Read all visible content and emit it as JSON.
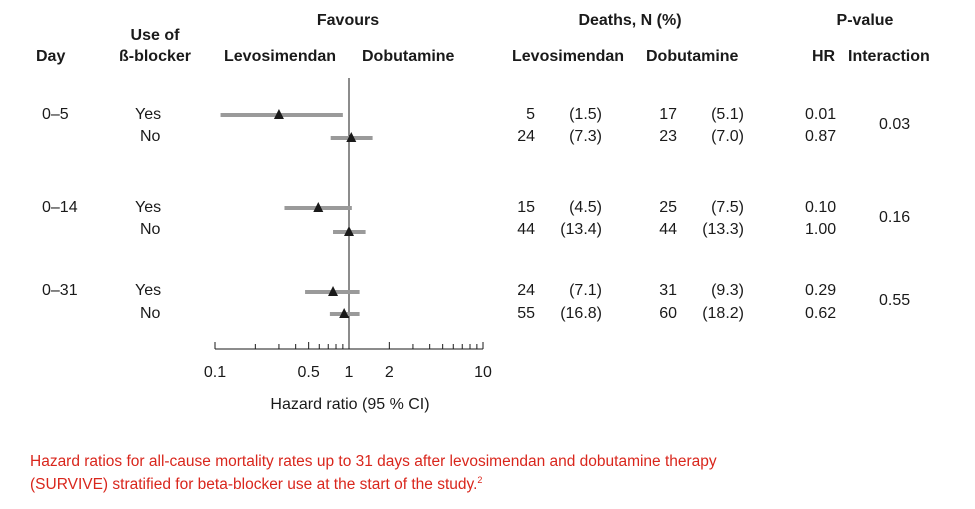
{
  "headers": {
    "day": "Day",
    "beta_blocker": [
      "Use of",
      "ß-blocker"
    ],
    "favours": "Favours",
    "favours_levo": "Levosimendan",
    "favours_dobu": "Dobutamine",
    "deaths": "Deaths, N (%)",
    "deaths_levo": "Levosimendan",
    "deaths_dobu": "Dobutamine",
    "pvalue": "P-value",
    "hr": "HR",
    "interaction": "Interaction"
  },
  "groups": [
    {
      "day": "0–5",
      "interaction": "0.03",
      "rows": [
        {
          "use": "Yes",
          "levo_n": "5",
          "levo_pct": "(1.5)",
          "dobu_n": "17",
          "dobu_pct": "(5.1)",
          "hr_p": "0.01"
        },
        {
          "use": "No",
          "levo_n": "24",
          "levo_pct": "(7.3)",
          "dobu_n": "23",
          "dobu_pct": "(7.0)",
          "hr_p": "0.87"
        }
      ]
    },
    {
      "day": "0–14",
      "interaction": "0.16",
      "rows": [
        {
          "use": "Yes",
          "levo_n": "15",
          "levo_pct": "(4.5)",
          "dobu_n": "25",
          "dobu_pct": "(7.5)",
          "hr_p": "0.10"
        },
        {
          "use": "No",
          "levo_n": "44",
          "levo_pct": "(13.4)",
          "dobu_n": "44",
          "dobu_pct": "(13.3)",
          "hr_p": "1.00"
        }
      ]
    },
    {
      "day": "0–31",
      "interaction": "0.55",
      "rows": [
        {
          "use": "Yes",
          "levo_n": "24",
          "levo_pct": "(7.1)",
          "dobu_n": "31",
          "dobu_pct": "(9.3)",
          "hr_p": "0.29"
        },
        {
          "use": "No",
          "levo_n": "55",
          "levo_pct": "(16.8)",
          "dobu_n": "60",
          "dobu_pct": "(18.2)",
          "hr_p": "0.62"
        }
      ]
    }
  ],
  "caption": "Hazard ratios for all-cause mortality rates up to 31 days after levosimendan and dobutamine therapy (SURVIVE) stratified for beta-blocker use at the start of the study.",
  "caption_ref": "2",
  "colors": {
    "ci_line": "#9a9a9a",
    "marker": "#1a1a1a",
    "caption": "#d9261c"
  },
  "chart_data": {
    "type": "forest",
    "scale": "log",
    "xlabel": "Hazard ratio (95 % CI)",
    "xlim": [
      0.1,
      10
    ],
    "reference_line": 1,
    "tick_labels": [
      "0.1",
      "0.5",
      "1",
      "2",
      "10"
    ],
    "tick_values": [
      0.1,
      0.5,
      1,
      2,
      10
    ],
    "minor_ticks": [
      0.2,
      0.3,
      0.4,
      0.6,
      0.7,
      0.8,
      0.9,
      3,
      4,
      5,
      6,
      7,
      8,
      9
    ],
    "points": [
      {
        "day": "0–5",
        "use": "Yes",
        "hr": 0.3,
        "ci": [
          0.11,
          0.9
        ]
      },
      {
        "day": "0–5",
        "use": "No",
        "hr": 1.04,
        "ci": [
          0.73,
          1.5
        ]
      },
      {
        "day": "0–14",
        "use": "Yes",
        "hr": 0.59,
        "ci": [
          0.33,
          1.05
        ]
      },
      {
        "day": "0–14",
        "use": "No",
        "hr": 1.0,
        "ci": [
          0.76,
          1.33
        ]
      },
      {
        "day": "0–31",
        "use": "Yes",
        "hr": 0.76,
        "ci": [
          0.47,
          1.2
        ]
      },
      {
        "day": "0–31",
        "use": "No",
        "hr": 0.92,
        "ci": [
          0.72,
          1.2
        ]
      }
    ]
  }
}
